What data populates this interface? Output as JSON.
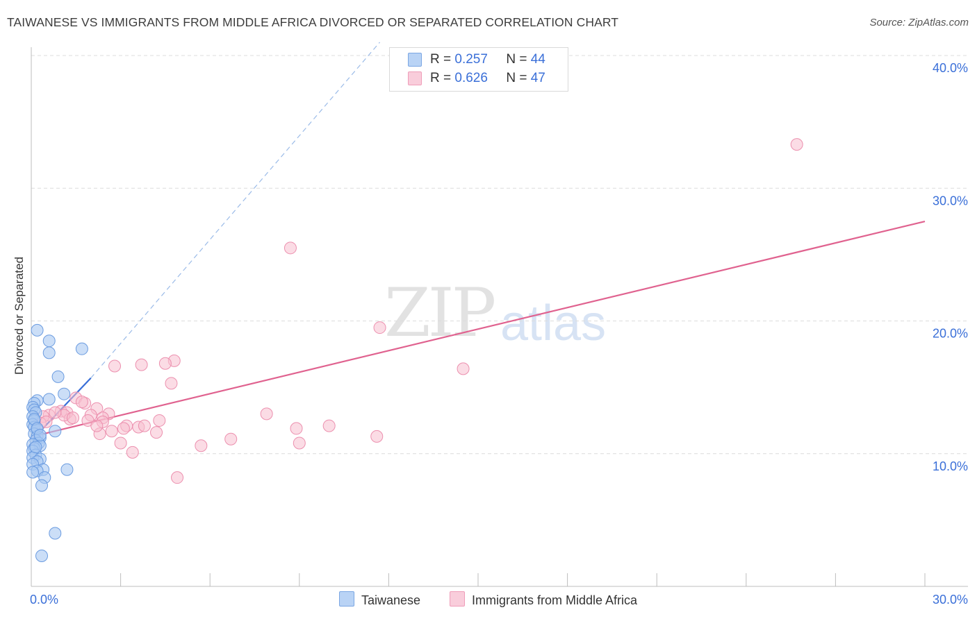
{
  "title": "TAIWANESE VS IMMIGRANTS FROM MIDDLE AFRICA DIVORCED OR SEPARATED CORRELATION CHART",
  "source": "Source: ZipAtlas.com",
  "watermark": {
    "zip": "ZIP",
    "atlas": "atlas"
  },
  "legend": {
    "rows": [
      {
        "r_label": "R =",
        "r_value": "0.257",
        "n_label": "N =",
        "n_value": "44"
      },
      {
        "r_label": "R =",
        "r_value": "0.626",
        "n_label": "N =",
        "n_value": "47"
      }
    ]
  },
  "bottom_legend": {
    "series1": "Taiwanese",
    "series2": "Immigrants from Middle Africa"
  },
  "colors": {
    "taiwanese_fill": "#a9c8f2",
    "taiwanese_stroke": "#6a9be0",
    "taiwanese_line": "#3a6fd8",
    "africa_fill": "#f7bfd0",
    "africa_stroke": "#ec8fae",
    "africa_line": "#e0628f",
    "axis_text": "#3a6fd8",
    "grid": "#dcdcdc"
  },
  "chart_data": {
    "type": "scatter",
    "title": "TAIWANESE VS IMMIGRANTS FROM MIDDLE AFRICA DIVORCED OR SEPARATED CORRELATION CHART",
    "xlabel": "",
    "ylabel": "Divorced or Separated",
    "xlim": [
      0,
      30
    ],
    "ylim": [
      0,
      40
    ],
    "x_tick_labels": [
      {
        "value": 0,
        "label": "0.0%"
      },
      {
        "value": 30,
        "label": "30.0%"
      }
    ],
    "y_tick_labels": [
      {
        "value": 10,
        "label": "10.0%"
      },
      {
        "value": 20,
        "label": "20.0%"
      },
      {
        "value": 30,
        "label": "30.0%"
      },
      {
        "value": 40,
        "label": "40.0%"
      }
    ],
    "series": [
      {
        "name": "Taiwanese",
        "R": 0.257,
        "N": 44,
        "points": [
          [
            0.2,
            19.3
          ],
          [
            0.6,
            18.5
          ],
          [
            0.6,
            17.6
          ],
          [
            1.7,
            17.9
          ],
          [
            0.9,
            15.8
          ],
          [
            1.1,
            14.5
          ],
          [
            0.6,
            14.1
          ],
          [
            0.2,
            14.0
          ],
          [
            0.1,
            13.8
          ],
          [
            0.05,
            13.5
          ],
          [
            0.1,
            13.3
          ],
          [
            0.15,
            13.1
          ],
          [
            0.05,
            12.8
          ],
          [
            0.1,
            12.5
          ],
          [
            0.05,
            12.2
          ],
          [
            0.1,
            12.0
          ],
          [
            0.2,
            11.8
          ],
          [
            0.8,
            11.7
          ],
          [
            0.1,
            11.5
          ],
          [
            0.2,
            11.3
          ],
          [
            0.3,
            11.2
          ],
          [
            0.15,
            11.0
          ],
          [
            0.25,
            10.8
          ],
          [
            0.05,
            10.7
          ],
          [
            0.3,
            10.6
          ],
          [
            0.1,
            10.4
          ],
          [
            0.05,
            10.2
          ],
          [
            0.15,
            9.9
          ],
          [
            0.05,
            9.7
          ],
          [
            0.3,
            9.6
          ],
          [
            0.2,
            9.4
          ],
          [
            0.05,
            9.2
          ],
          [
            1.2,
            8.8
          ],
          [
            0.4,
            8.8
          ],
          [
            0.2,
            8.7
          ],
          [
            0.05,
            8.6
          ],
          [
            0.45,
            8.2
          ],
          [
            0.35,
            7.6
          ],
          [
            0.8,
            4.0
          ],
          [
            0.35,
            2.3
          ],
          [
            0.1,
            12.6
          ],
          [
            0.2,
            11.9
          ],
          [
            0.15,
            10.5
          ],
          [
            0.3,
            11.4
          ]
        ],
        "trend_solid": {
          "x": [
            0.05,
            2.0
          ],
          "y": [
            11.1,
            15.7
          ]
        },
        "trend_dashed": {
          "x": [
            2.0,
            11.7
          ],
          "y": [
            15.7,
            41.0
          ]
        }
      },
      {
        "name": "Immigrants from Middle Africa",
        "R": 0.626,
        "N": 47,
        "points": [
          [
            25.7,
            33.3
          ],
          [
            8.7,
            25.5
          ],
          [
            11.7,
            19.5
          ],
          [
            14.5,
            16.4
          ],
          [
            4.8,
            17.0
          ],
          [
            4.5,
            16.8
          ],
          [
            3.7,
            16.7
          ],
          [
            2.8,
            16.6
          ],
          [
            4.7,
            15.3
          ],
          [
            1.5,
            14.2
          ],
          [
            1.8,
            13.8
          ],
          [
            2.2,
            13.4
          ],
          [
            1.0,
            13.2
          ],
          [
            1.2,
            13.1
          ],
          [
            2.6,
            13.0
          ],
          [
            0.6,
            12.9
          ],
          [
            0.4,
            12.8
          ],
          [
            7.9,
            13.0
          ],
          [
            2.0,
            12.9
          ],
          [
            2.4,
            12.7
          ],
          [
            1.3,
            12.6
          ],
          [
            4.3,
            12.5
          ],
          [
            1.9,
            12.5
          ],
          [
            2.4,
            12.4
          ],
          [
            0.3,
            12.3
          ],
          [
            3.2,
            12.1
          ],
          [
            10.0,
            12.1
          ],
          [
            3.6,
            12.0
          ],
          [
            3.1,
            11.9
          ],
          [
            8.9,
            11.9
          ],
          [
            2.3,
            11.5
          ],
          [
            4.2,
            11.6
          ],
          [
            11.6,
            11.3
          ],
          [
            6.7,
            11.1
          ],
          [
            3.0,
            10.8
          ],
          [
            9.0,
            10.8
          ],
          [
            5.7,
            10.6
          ],
          [
            3.4,
            10.1
          ],
          [
            4.9,
            8.2
          ],
          [
            1.7,
            13.9
          ],
          [
            0.5,
            12.4
          ],
          [
            1.1,
            12.9
          ],
          [
            2.7,
            11.7
          ],
          [
            1.4,
            12.7
          ],
          [
            3.8,
            12.1
          ],
          [
            2.2,
            12.1
          ],
          [
            0.8,
            13.1
          ]
        ],
        "trend_solid": {
          "x": [
            0.05,
            30.0
          ],
          "y": [
            11.3,
            27.5
          ]
        }
      }
    ]
  }
}
